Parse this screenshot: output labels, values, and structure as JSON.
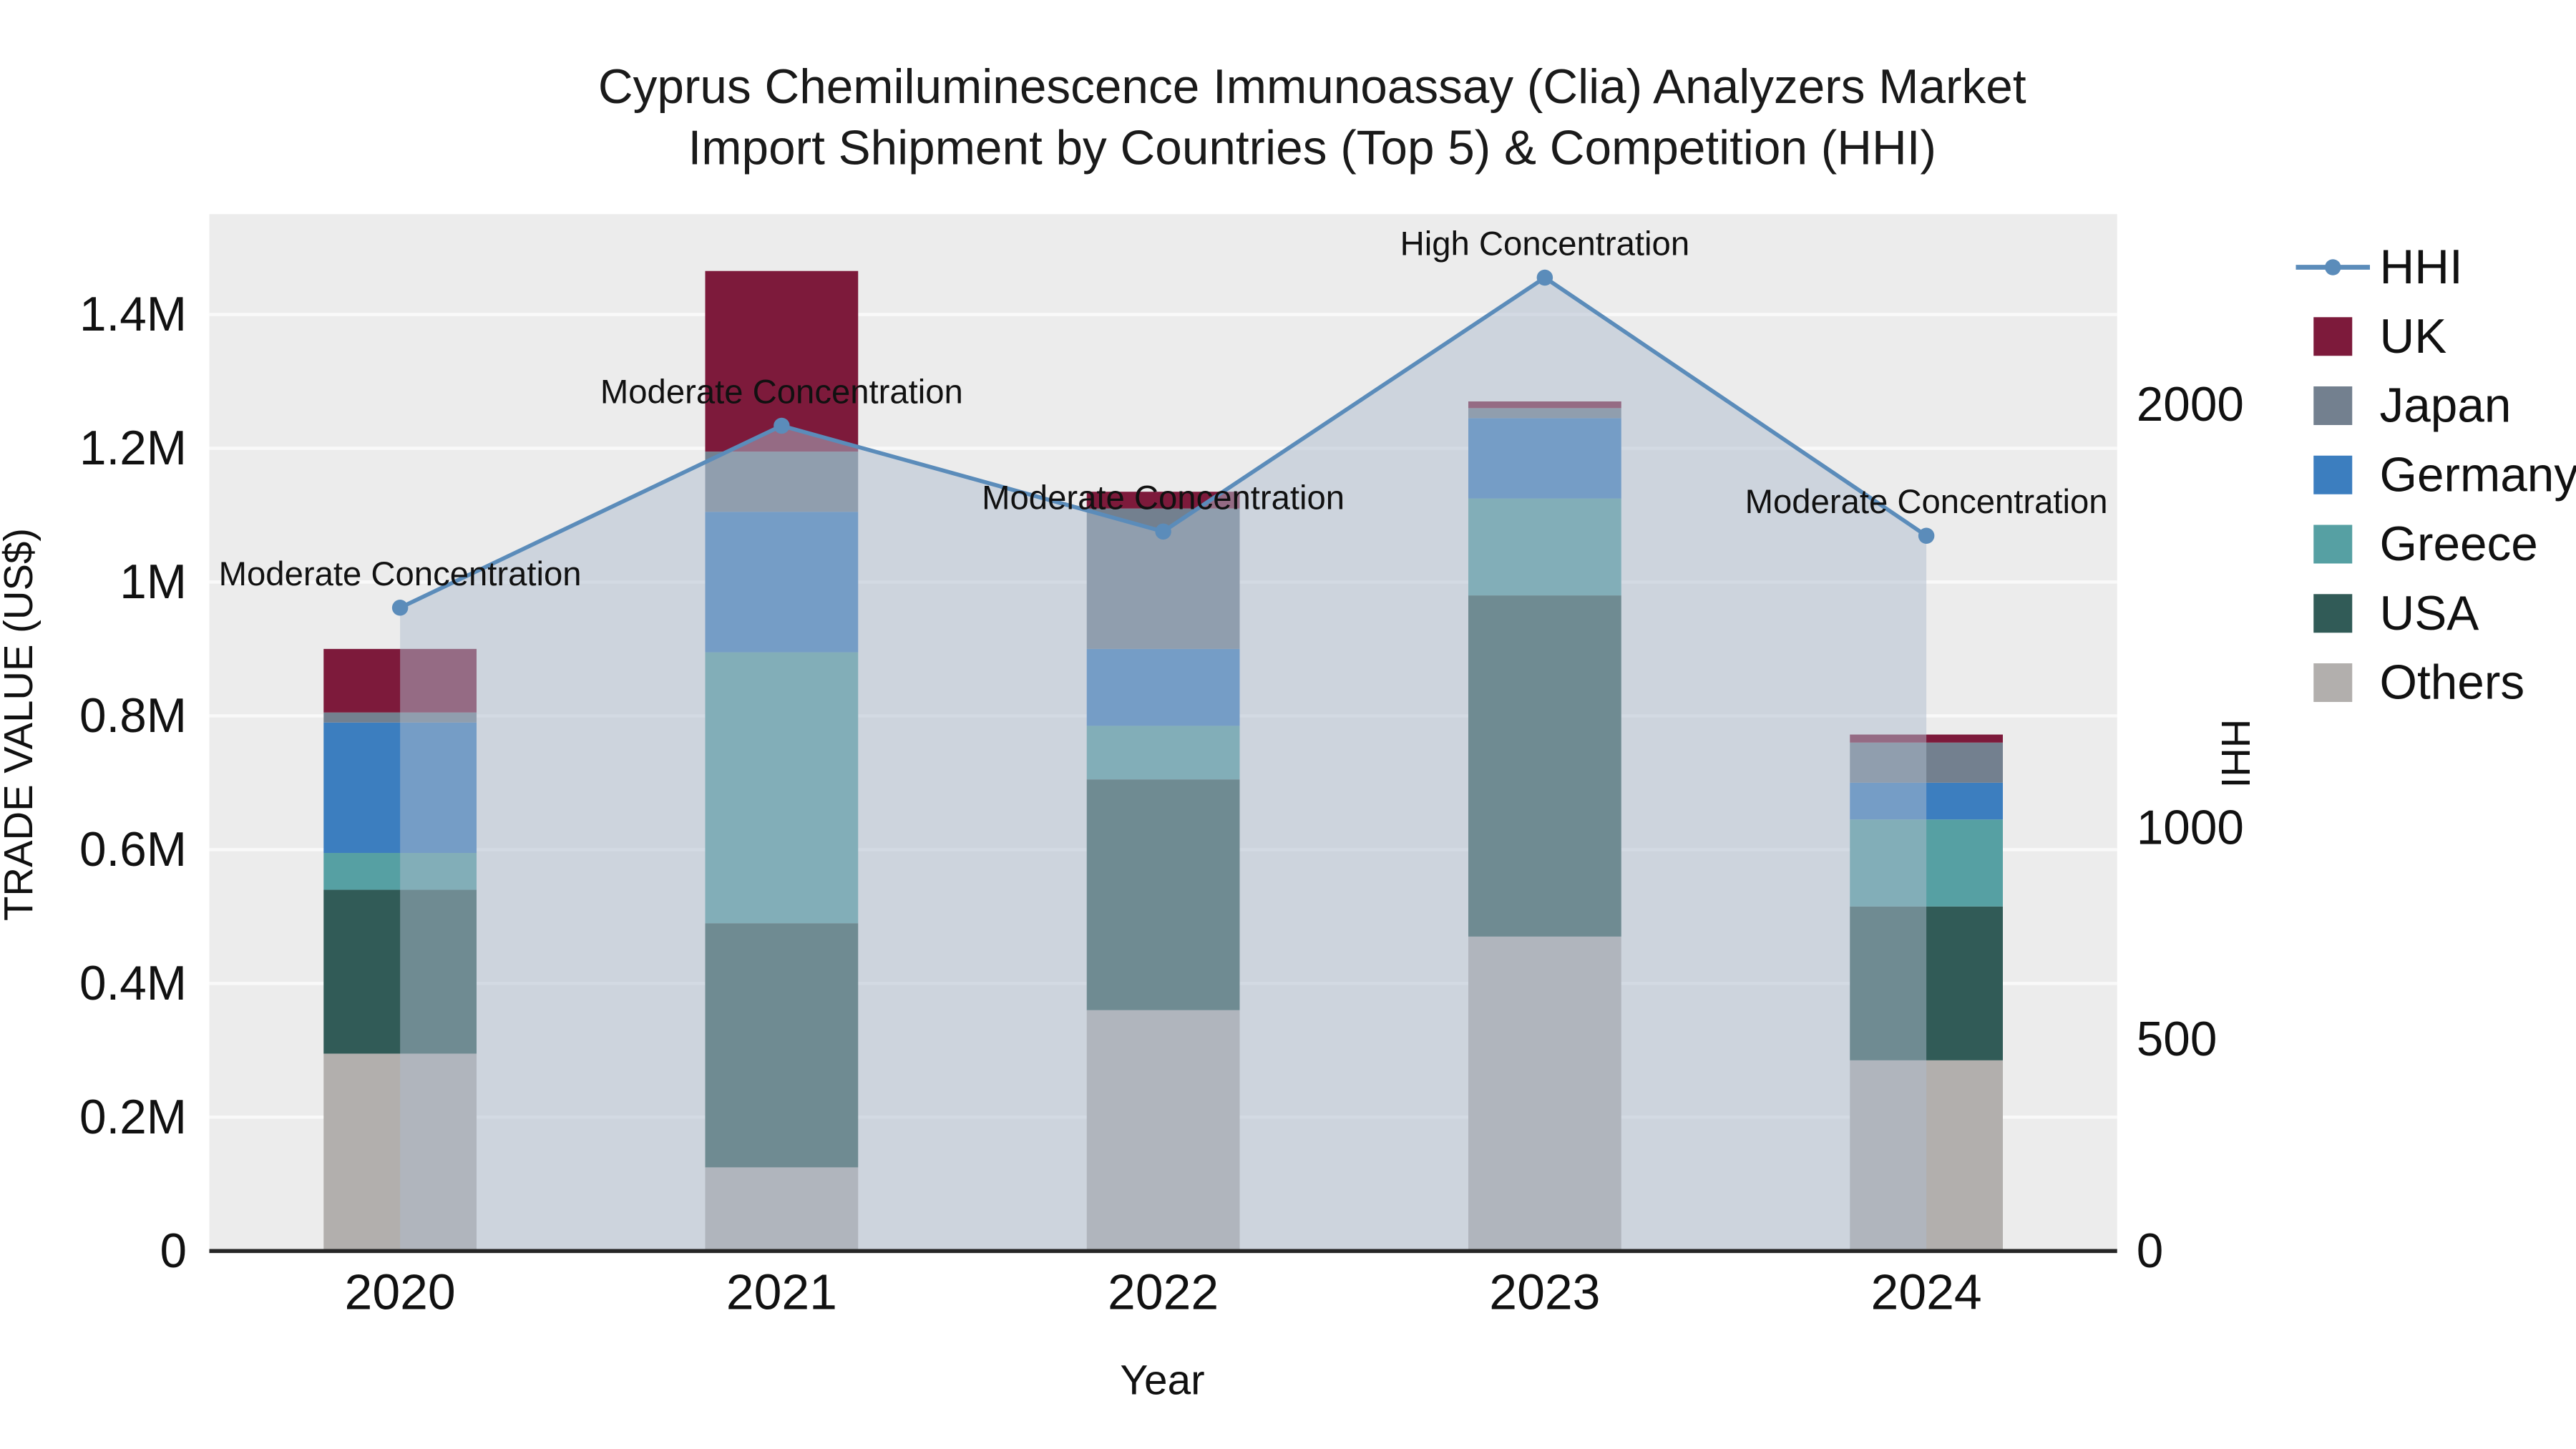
{
  "chart_data": {
    "type": "bar",
    "stacked": true,
    "title_line1": "Cyprus Chemiluminescence Immunoassay (Clia) Analyzers Market",
    "title_line2": "Import Shipment by Countries (Top 5) & Competition (HHI)",
    "xlabel": "Year",
    "ylabel_left": "TRADE VALUE (US$)",
    "ylabel_right": "HHI",
    "categories": [
      "2020",
      "2021",
      "2022",
      "2023",
      "2024"
    ],
    "series": [
      {
        "name": "Others",
        "color": "#b2afad",
        "values": [
          295000,
          125000,
          360000,
          470000,
          285000
        ]
      },
      {
        "name": "USA",
        "color": "#315b57",
        "values": [
          245000,
          365000,
          345000,
          510000,
          230000
        ]
      },
      {
        "name": "Greece",
        "color": "#56a0a3",
        "values": [
          55000,
          405000,
          80000,
          145000,
          130000
        ]
      },
      {
        "name": "Germany",
        "color": "#3c7ebf",
        "values": [
          195000,
          210000,
          115000,
          120000,
          55000
        ]
      },
      {
        "name": "Japan",
        "color": "#73808f",
        "values": [
          15000,
          90000,
          210000,
          15000,
          60000
        ]
      },
      {
        "name": "UK",
        "color": "#7d1a3b",
        "values": [
          95000,
          270000,
          25000,
          10000,
          12000
        ]
      }
    ],
    "line_series": {
      "name": "HHI",
      "axis": "right",
      "color": "#5b8cba",
      "area_fill": "rgba(173,187,205,0.5)",
      "values": [
        1520,
        1950,
        1700,
        2300,
        1690
      ]
    },
    "annotations": [
      "Moderate Concentration",
      "Moderate Concentration",
      "Moderate Concentration",
      "High Concentration",
      "Moderate Concentration"
    ],
    "y_left": {
      "max": 1550000,
      "ticks": [
        0,
        200000,
        400000,
        600000,
        800000,
        1000000,
        1200000,
        1400000
      ],
      "tick_labels": [
        "0",
        "0.2M",
        "0.4M",
        "0.6M",
        "0.8M",
        "1M",
        "1.2M",
        "1.4M"
      ]
    },
    "y_right": {
      "max": 2450,
      "ticks": [
        0,
        500,
        1000,
        2000
      ],
      "tick_labels": [
        "0",
        "500",
        "1000",
        "2000"
      ]
    },
    "legend_items": [
      {
        "label": "HHI",
        "type": "line",
        "color": "#5b8cba"
      },
      {
        "label": "UK",
        "type": "swatch",
        "color": "#7d1a3b"
      },
      {
        "label": "Japan",
        "type": "swatch",
        "color": "#73808f"
      },
      {
        "label": "Germany",
        "type": "swatch",
        "color": "#3c7ebf"
      },
      {
        "label": "Greece",
        "type": "swatch",
        "color": "#56a0a3"
      },
      {
        "label": "USA",
        "type": "swatch",
        "color": "#315b57"
      },
      {
        "label": "Others",
        "type": "swatch",
        "color": "#b2afad"
      }
    ],
    "plot_bg": "#ececec",
    "grid_color": "#f9f9f9",
    "axis_line_color": "#262626",
    "text_color": "#111111",
    "title_color": "#1a1a1a"
  }
}
